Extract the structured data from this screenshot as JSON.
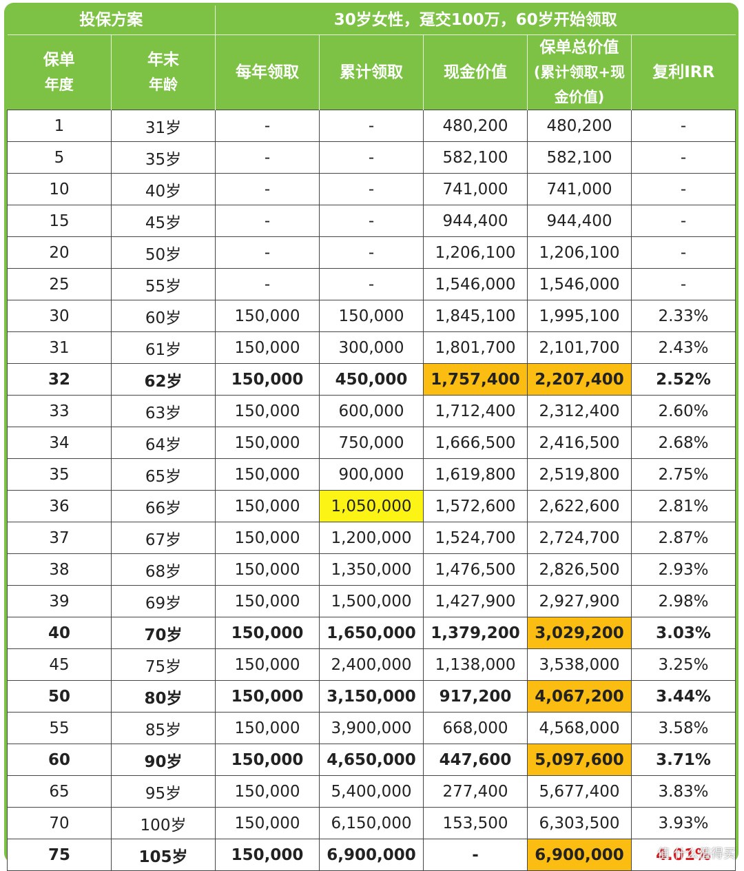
{
  "header": {
    "plan": "投保方案",
    "scenario": "30岁女性，趸交100万，60岁开始领取"
  },
  "table": {
    "columns": [
      [
        "保单",
        "年度"
      ],
      [
        "年末",
        "年龄"
      ],
      [
        "每年领取"
      ],
      [
        "累计领取"
      ],
      [
        "现金价值"
      ],
      [
        "保单总价值",
        "(累计领取+现金价值)"
      ],
      [
        "复利IRR"
      ]
    ],
    "rows": [
      [
        "1",
        "31岁",
        "-",
        "-",
        "480,200",
        "480,200",
        "-"
      ],
      [
        "5",
        "35岁",
        "-",
        "-",
        "582,100",
        "582,100",
        "-"
      ],
      [
        "10",
        "40岁",
        "-",
        "-",
        "741,000",
        "741,000",
        "-"
      ],
      [
        "15",
        "45岁",
        "-",
        "-",
        "944,400",
        "944,400",
        "-"
      ],
      [
        "20",
        "50岁",
        "-",
        "-",
        "1,206,100",
        "1,206,100",
        "-"
      ],
      [
        "25",
        "55岁",
        "-",
        "-",
        "1,546,000",
        "1,546,000",
        "-"
      ],
      [
        "30",
        "60岁",
        "150,000",
        "150,000",
        "1,845,100",
        "1,995,100",
        "2.33%"
      ],
      [
        "31",
        "61岁",
        "150,000",
        "300,000",
        "1,801,700",
        "2,101,700",
        "2.43%"
      ],
      [
        "32",
        "62岁",
        "150,000",
        "450,000",
        "1,757,400",
        "2,207,400",
        "2.52%"
      ],
      [
        "33",
        "63岁",
        "150,000",
        "600,000",
        "1,712,400",
        "2,312,400",
        "2.60%"
      ],
      [
        "34",
        "64岁",
        "150,000",
        "750,000",
        "1,666,500",
        "2,416,500",
        "2.68%"
      ],
      [
        "35",
        "65岁",
        "150,000",
        "900,000",
        "1,619,800",
        "2,519,800",
        "2.75%"
      ],
      [
        "36",
        "66岁",
        "150,000",
        "1,050,000",
        "1,572,600",
        "2,622,600",
        "2.81%"
      ],
      [
        "37",
        "67岁",
        "150,000",
        "1,200,000",
        "1,524,700",
        "2,724,700",
        "2.87%"
      ],
      [
        "38",
        "68岁",
        "150,000",
        "1,350,000",
        "1,476,500",
        "2,826,500",
        "2.93%"
      ],
      [
        "39",
        "69岁",
        "150,000",
        "1,500,000",
        "1,427,900",
        "2,927,900",
        "2.98%"
      ],
      [
        "40",
        "70岁",
        "150,000",
        "1,650,000",
        "1,379,200",
        "3,029,200",
        "3.03%"
      ],
      [
        "45",
        "75岁",
        "150,000",
        "2,400,000",
        "1,138,000",
        "3,538,000",
        "3.25%"
      ],
      [
        "50",
        "80岁",
        "150,000",
        "3,150,000",
        "917,200",
        "4,067,200",
        "3.44%"
      ],
      [
        "55",
        "85岁",
        "150,000",
        "3,900,000",
        "668,000",
        "4,568,000",
        "3.58%"
      ],
      [
        "60",
        "90岁",
        "150,000",
        "4,650,000",
        "447,600",
        "5,097,600",
        "3.71%"
      ],
      [
        "65",
        "95岁",
        "150,000",
        "5,400,000",
        "277,400",
        "5,677,400",
        "3.83%"
      ],
      [
        "70",
        "100岁",
        "150,000",
        "6,150,000",
        "153,500",
        "6,303,500",
        "3.93%"
      ],
      [
        "75",
        "105岁",
        "150,000",
        "6,900,000",
        "-",
        "6,900,000",
        "4.01%"
      ]
    ]
  },
  "watermark": "值 什么值得买"
}
